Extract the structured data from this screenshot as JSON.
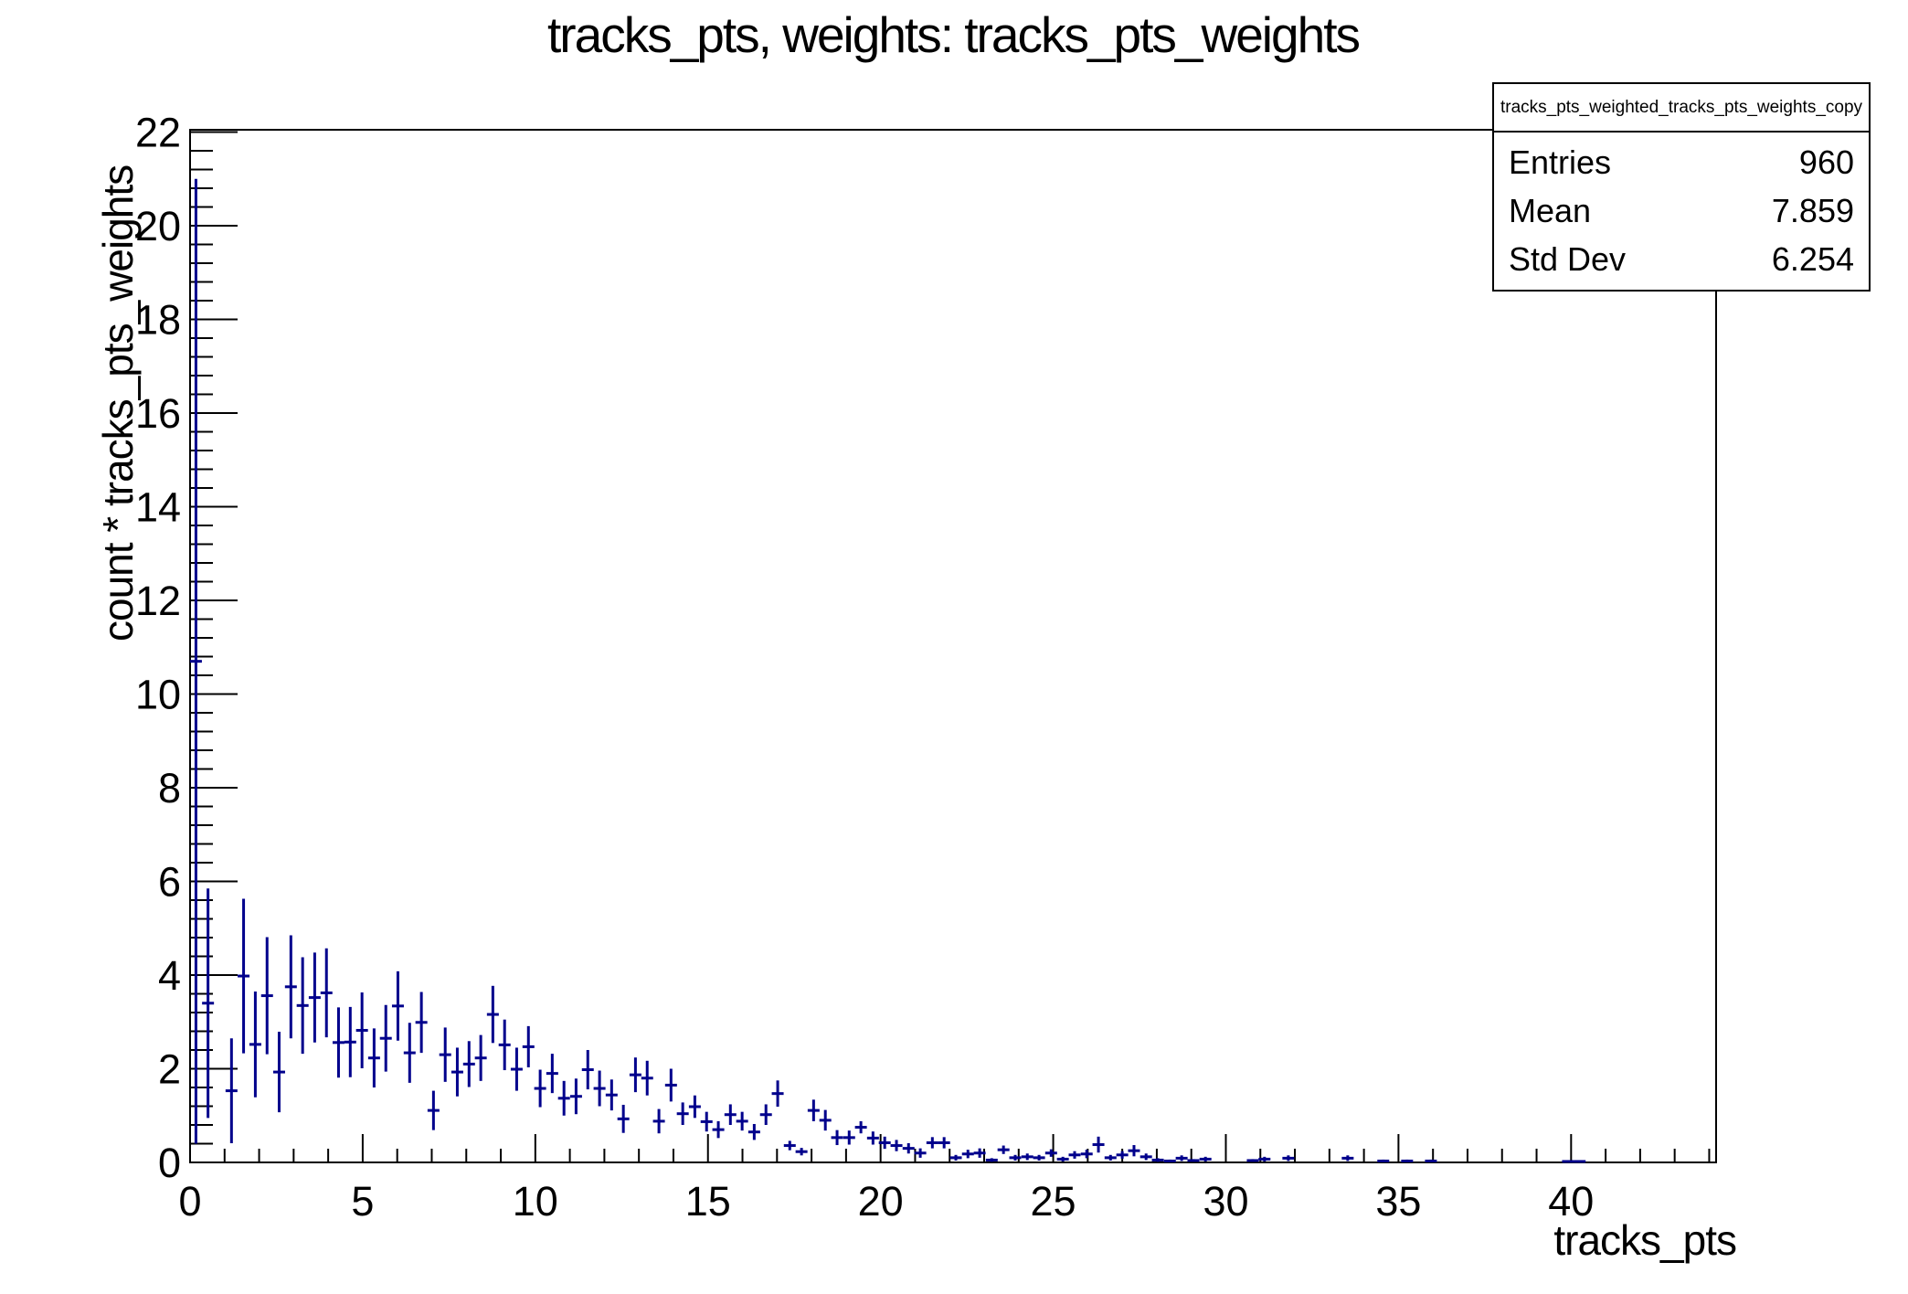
{
  "title": "tracks_pts, weights: tracks_pts_weights",
  "stats_box": {
    "header": "tracks_pts_weighted_tracks_pts_weights_copy",
    "rows": [
      {
        "label": "Entries",
        "value": "960"
      },
      {
        "label": "Mean",
        "value": "7.859"
      },
      {
        "label": "Std Dev",
        "value": "6.254"
      }
    ]
  },
  "chart_data": {
    "type": "scatter",
    "style": "root-histogram-error-bars",
    "title": "tracks_pts, weights: tracks_pts_weights",
    "xlabel": "tracks_pts",
    "ylabel": "count * tracks_pts_weights",
    "xlim": [
      0,
      44.2
    ],
    "ylim": [
      0,
      22.05
    ],
    "grid": false,
    "legend_position": "none",
    "x_major_ticks": [
      0,
      5,
      10,
      15,
      20,
      25,
      30,
      35,
      40
    ],
    "x_minor_step": 1,
    "y_major_ticks": [
      0,
      2,
      4,
      6,
      8,
      10,
      12,
      14,
      16,
      18,
      20,
      22
    ],
    "y_minor_step": 0.4,
    "bin_width": 0.344,
    "marker_color": "#00008c",
    "frame_color": "#000000",
    "points_format": "[x_center, y_value, y_error]",
    "points": [
      [
        0.17,
        10.7,
        10.3
      ],
      [
        0.52,
        3.4,
        2.45
      ],
      [
        1.2,
        1.53,
        1.12
      ],
      [
        1.55,
        3.98,
        1.65
      ],
      [
        1.89,
        2.52,
        1.13
      ],
      [
        2.23,
        3.56,
        1.25
      ],
      [
        2.58,
        1.93,
        0.86
      ],
      [
        2.92,
        3.75,
        1.1
      ],
      [
        3.26,
        3.35,
        1.03
      ],
      [
        3.61,
        3.52,
        0.96
      ],
      [
        3.95,
        3.62,
        0.95
      ],
      [
        4.3,
        2.56,
        0.75
      ],
      [
        4.64,
        2.57,
        0.75
      ],
      [
        4.98,
        2.82,
        0.81
      ],
      [
        5.33,
        2.23,
        0.63
      ],
      [
        5.67,
        2.65,
        0.71
      ],
      [
        6.02,
        3.34,
        0.74
      ],
      [
        6.36,
        2.34,
        0.64
      ],
      [
        6.7,
        2.99,
        0.65
      ],
      [
        7.05,
        1.11,
        0.42
      ],
      [
        7.39,
        2.3,
        0.58
      ],
      [
        7.74,
        1.93,
        0.52
      ],
      [
        8.08,
        2.1,
        0.49
      ],
      [
        8.42,
        2.23,
        0.49
      ],
      [
        8.77,
        3.16,
        0.61
      ],
      [
        9.11,
        2.51,
        0.54
      ],
      [
        9.46,
        1.99,
        0.46
      ],
      [
        9.8,
        2.47,
        0.44
      ],
      [
        10.14,
        1.58,
        0.4
      ],
      [
        10.49,
        1.9,
        0.42
      ],
      [
        10.83,
        1.37,
        0.37
      ],
      [
        11.18,
        1.41,
        0.38
      ],
      [
        11.52,
        1.98,
        0.42
      ],
      [
        11.86,
        1.58,
        0.38
      ],
      [
        12.21,
        1.44,
        0.33
      ],
      [
        12.55,
        0.93,
        0.3
      ],
      [
        12.9,
        1.87,
        0.37
      ],
      [
        13.24,
        1.8,
        0.37
      ],
      [
        13.58,
        0.88,
        0.26
      ],
      [
        13.93,
        1.65,
        0.35
      ],
      [
        14.27,
        1.04,
        0.24
      ],
      [
        14.62,
        1.19,
        0.24
      ],
      [
        14.96,
        0.87,
        0.21
      ],
      [
        15.3,
        0.7,
        0.18
      ],
      [
        15.65,
        1.02,
        0.22
      ],
      [
        15.99,
        0.88,
        0.2
      ],
      [
        16.34,
        0.65,
        0.17
      ],
      [
        16.68,
        1.02,
        0.22
      ],
      [
        17.02,
        1.47,
        0.28
      ],
      [
        17.37,
        0.36,
        0.1
      ],
      [
        17.71,
        0.23,
        0.08
      ],
      [
        18.06,
        1.11,
        0.23
      ],
      [
        18.4,
        0.9,
        0.22
      ],
      [
        18.74,
        0.53,
        0.16
      ],
      [
        19.09,
        0.53,
        0.15
      ],
      [
        19.43,
        0.75,
        0.13
      ],
      [
        19.78,
        0.52,
        0.14
      ],
      [
        20.12,
        0.42,
        0.13
      ],
      [
        20.46,
        0.36,
        0.12
      ],
      [
        20.81,
        0.3,
        0.11
      ],
      [
        21.15,
        0.2,
        0.1
      ],
      [
        21.5,
        0.42,
        0.12
      ],
      [
        21.84,
        0.42,
        0.12
      ],
      [
        22.18,
        0.1,
        0.06
      ],
      [
        22.53,
        0.18,
        0.09
      ],
      [
        22.87,
        0.2,
        0.1
      ],
      [
        23.22,
        0.05,
        0.04
      ],
      [
        23.56,
        0.27,
        0.09
      ],
      [
        23.9,
        0.1,
        0.06
      ],
      [
        24.25,
        0.12,
        0.07
      ],
      [
        24.59,
        0.1,
        0.06
      ],
      [
        24.94,
        0.2,
        0.08
      ],
      [
        25.28,
        0.07,
        0.05
      ],
      [
        25.62,
        0.16,
        0.08
      ],
      [
        25.97,
        0.18,
        0.09
      ],
      [
        26.31,
        0.38,
        0.17
      ],
      [
        26.66,
        0.1,
        0.06
      ],
      [
        27.0,
        0.16,
        0.08
      ],
      [
        27.34,
        0.25,
        0.12
      ],
      [
        27.69,
        0.12,
        0.07
      ],
      [
        28.03,
        0.05,
        0.04
      ],
      [
        28.38,
        0.03,
        0.03
      ],
      [
        28.72,
        0.09,
        0.06
      ],
      [
        29.06,
        0.04,
        0.03
      ],
      [
        29.41,
        0.07,
        0.05
      ],
      [
        30.78,
        0.04,
        0.03
      ],
      [
        31.12,
        0.07,
        0.05
      ],
      [
        31.81,
        0.09,
        0.06
      ],
      [
        33.53,
        0.09,
        0.06
      ],
      [
        34.56,
        0.03,
        0.03
      ],
      [
        35.25,
        0.03,
        0.03
      ],
      [
        35.94,
        0.03,
        0.03
      ],
      [
        39.91,
        0.02,
        0.02
      ],
      [
        40.25,
        0.02,
        0.02
      ]
    ]
  }
}
